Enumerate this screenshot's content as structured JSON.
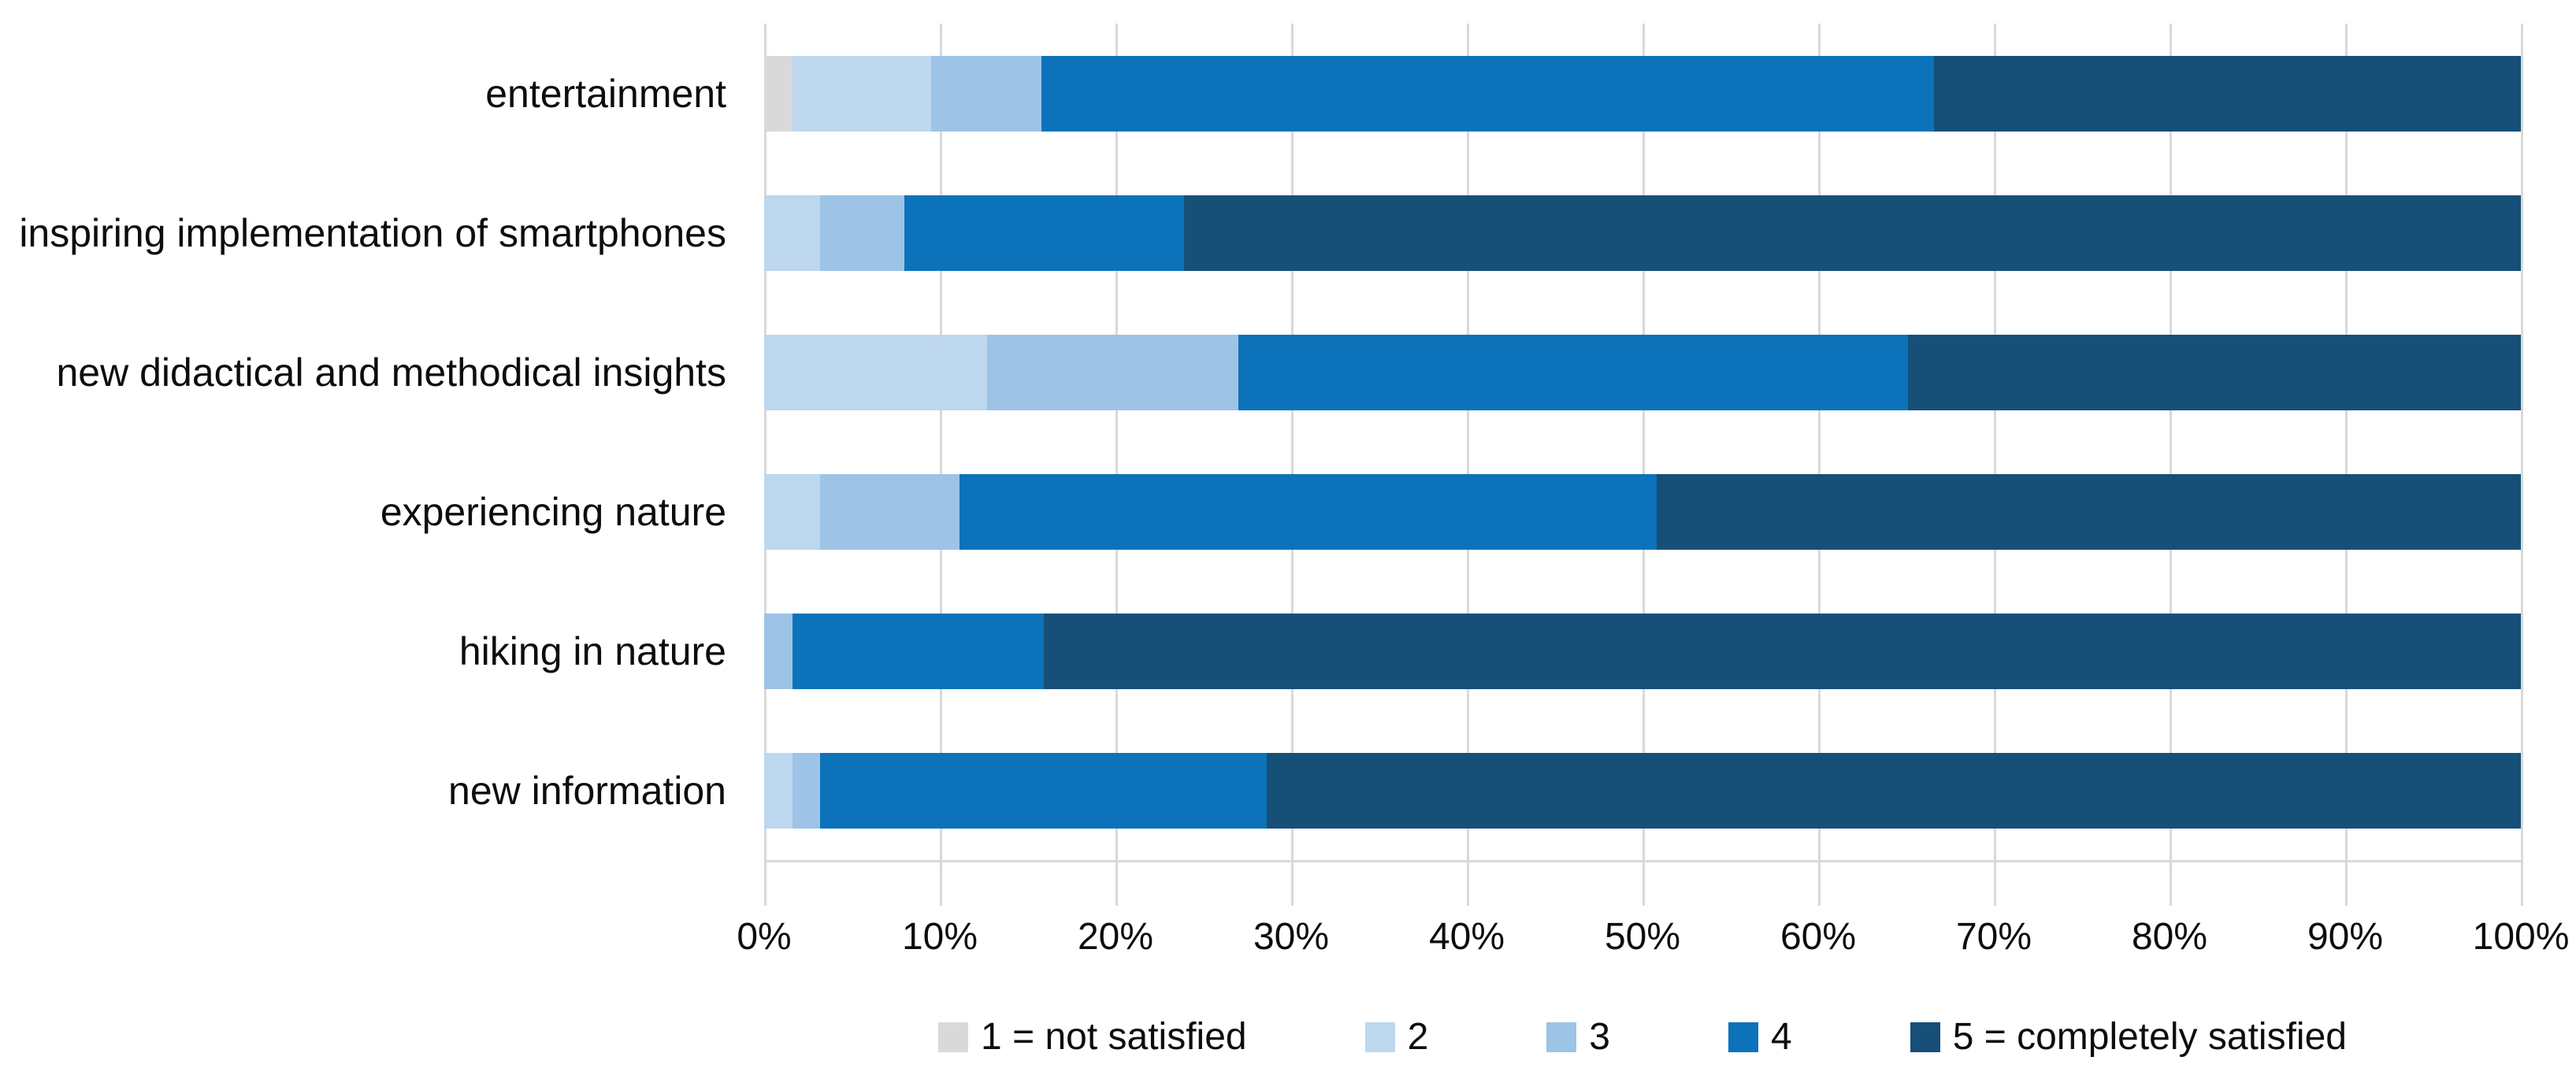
{
  "chart_data": {
    "type": "bar",
    "orientation": "horizontal",
    "stacked": true,
    "units": "percent",
    "title": "",
    "xlabel": "",
    "ylabel": "",
    "xlim": [
      0,
      100
    ],
    "grid": true,
    "legend_position": "bottom",
    "categories": [
      "entertainment",
      "inspiring implementation of smartphones",
      "new didactical and methodical insights",
      "experiencing nature",
      "hiking in nature",
      "new information"
    ],
    "series": [
      {
        "name": "1 = not satisfied",
        "color": "#d9d9d9",
        "values": [
          1.6,
          0.0,
          0.0,
          0.0,
          0.0,
          0.0
        ]
      },
      {
        "name": "2",
        "color": "#bdd7ee",
        "values": [
          7.9,
          3.2,
          12.7,
          3.2,
          0.0,
          1.6
        ]
      },
      {
        "name": "3",
        "color": "#9dc3e6",
        "values": [
          6.3,
          4.8,
          14.3,
          7.9,
          1.6,
          1.6
        ]
      },
      {
        "name": "4",
        "color": "#0c73ba",
        "values": [
          50.8,
          15.9,
          38.1,
          39.7,
          14.3,
          25.4
        ]
      },
      {
        "name": "5 = completely satisfied",
        "color": "#164f78",
        "values": [
          33.4,
          76.1,
          34.9,
          49.2,
          84.1,
          71.4
        ]
      }
    ],
    "x_axis": {
      "tick_labels": [
        "0%",
        "10%",
        "20%",
        "30%",
        "40%",
        "50%",
        "60%",
        "70%",
        "80%",
        "90%",
        "100%"
      ],
      "tick_values": [
        0,
        10,
        20,
        30,
        40,
        50,
        60,
        70,
        80,
        90,
        100
      ]
    },
    "legend_entries": [
      "1 = not satisfied",
      "2",
      "3",
      "4",
      "5 = completely satisfied"
    ],
    "colors": {
      "gridline": "#d9d9d9",
      "axis_line": "#d9d9d9",
      "text": "#0d0d0d",
      "background": "#ffffff"
    }
  }
}
